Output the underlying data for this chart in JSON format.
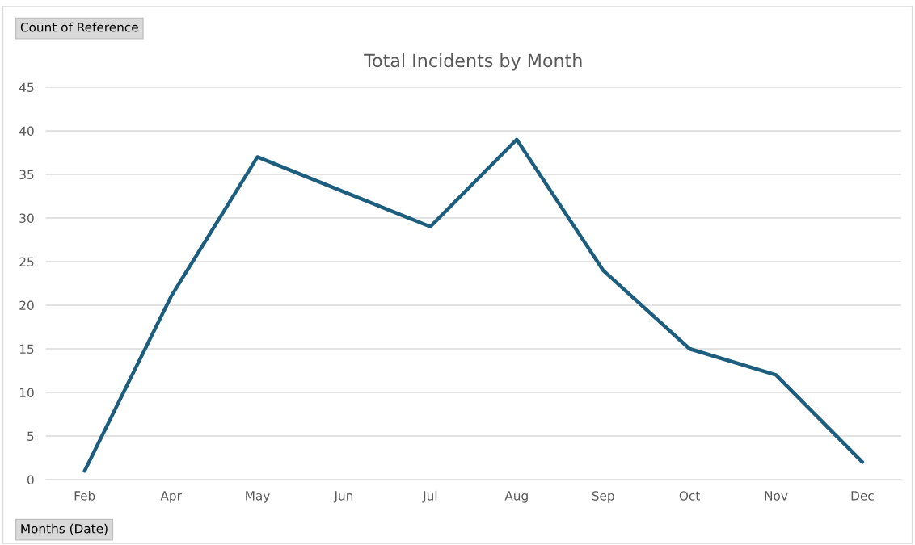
{
  "chart_data": {
    "type": "line",
    "title": "Total Incidents by Month",
    "categories": [
      "Feb",
      "Apr",
      "May",
      "Jun",
      "Jul",
      "Aug",
      "Sep",
      "Oct",
      "Nov",
      "Dec"
    ],
    "series": [
      {
        "color": "#1d5e7e",
        "values": [
          1,
          21,
          37,
          33,
          29,
          39,
          24,
          15,
          12,
          2
        ]
      }
    ],
    "ylim": [
      0,
      45
    ],
    "yticks": [
      0,
      5,
      10,
      15,
      20,
      25,
      30,
      35,
      40,
      45
    ],
    "grid": "y",
    "legend": false,
    "marker": "none",
    "line_style": "solid",
    "annotations": [
      "Count of Reference",
      "Months (Date)"
    ]
  }
}
